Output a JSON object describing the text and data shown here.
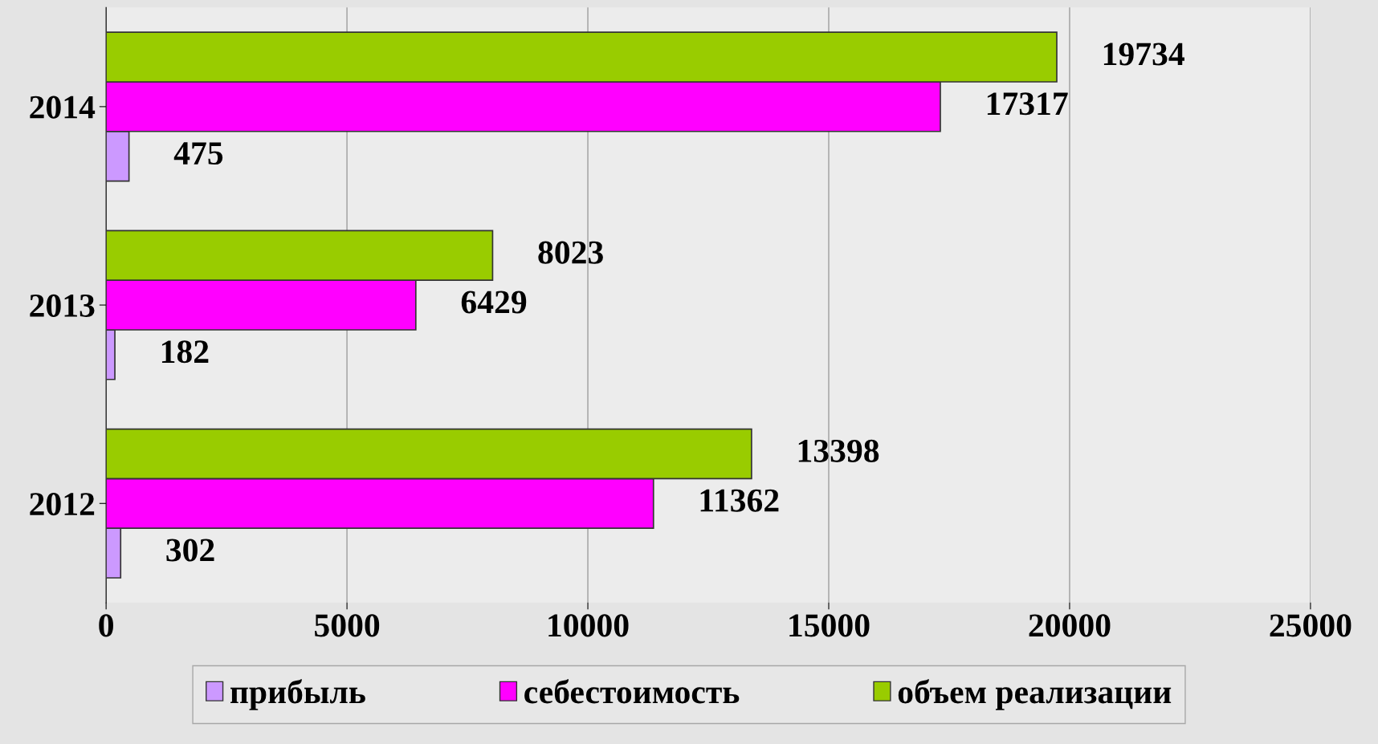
{
  "chart_data": {
    "type": "bar",
    "orientation": "horizontal",
    "categories": [
      "2014",
      "2013",
      "2012"
    ],
    "series": [
      {
        "name": "прибыль",
        "color": "#cc99ff",
        "values": [
          475,
          182,
          302
        ]
      },
      {
        "name": "себестоимость",
        "color": "#ff00ff",
        "values": [
          17317,
          6429,
          11362
        ]
      },
      {
        "name": "объем реализации",
        "color": "#99cc00",
        "values": [
          19734,
          8023,
          13398
        ]
      }
    ],
    "xlim": [
      0,
      25000
    ],
    "xticks": [
      0,
      5000,
      10000,
      15000,
      20000,
      25000
    ],
    "grid": "x",
    "legend": "bottom",
    "data_labels": true
  }
}
